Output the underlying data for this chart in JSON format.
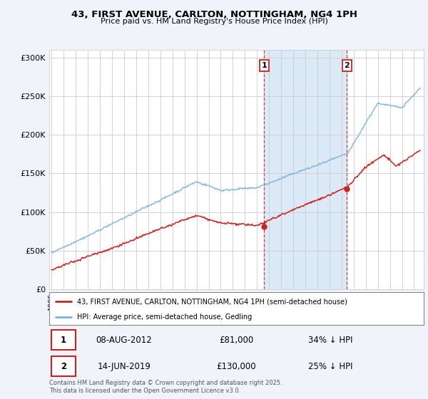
{
  "title": "43, FIRST AVENUE, CARLTON, NOTTINGHAM, NG4 1PH",
  "subtitle": "Price paid vs. HM Land Registry's House Price Index (HPI)",
  "ylabel_ticks": [
    "£0",
    "£50K",
    "£100K",
    "£150K",
    "£200K",
    "£250K",
    "£300K"
  ],
  "ytick_values": [
    0,
    50000,
    100000,
    150000,
    200000,
    250000,
    300000
  ],
  "ylim": [
    0,
    310000
  ],
  "xlim_start": 1994.8,
  "xlim_end": 2025.8,
  "hpi_color": "#7ab4d8",
  "price_color": "#cc2222",
  "marker1_date": 2012.6,
  "marker2_date": 2019.45,
  "sale1_label": "1",
  "sale2_label": "2",
  "sale1_price": 81000,
  "sale2_price": 130000,
  "legend_line1": "43, FIRST AVENUE, CARLTON, NOTTINGHAM, NG4 1PH (semi-detached house)",
  "legend_line2": "HPI: Average price, semi-detached house, Gedling",
  "table_row1": [
    "1",
    "08-AUG-2012",
    "£81,000",
    "34% ↓ HPI"
  ],
  "table_row2": [
    "2",
    "14-JUN-2019",
    "£130,000",
    "25% ↓ HPI"
  ],
  "footnote": "Contains HM Land Registry data © Crown copyright and database right 2025.\nThis data is licensed under the Open Government Licence v3.0.",
  "background_color": "#f0f4fa",
  "plot_background": "#ffffff",
  "shaded_region_color": "#dce9f7"
}
